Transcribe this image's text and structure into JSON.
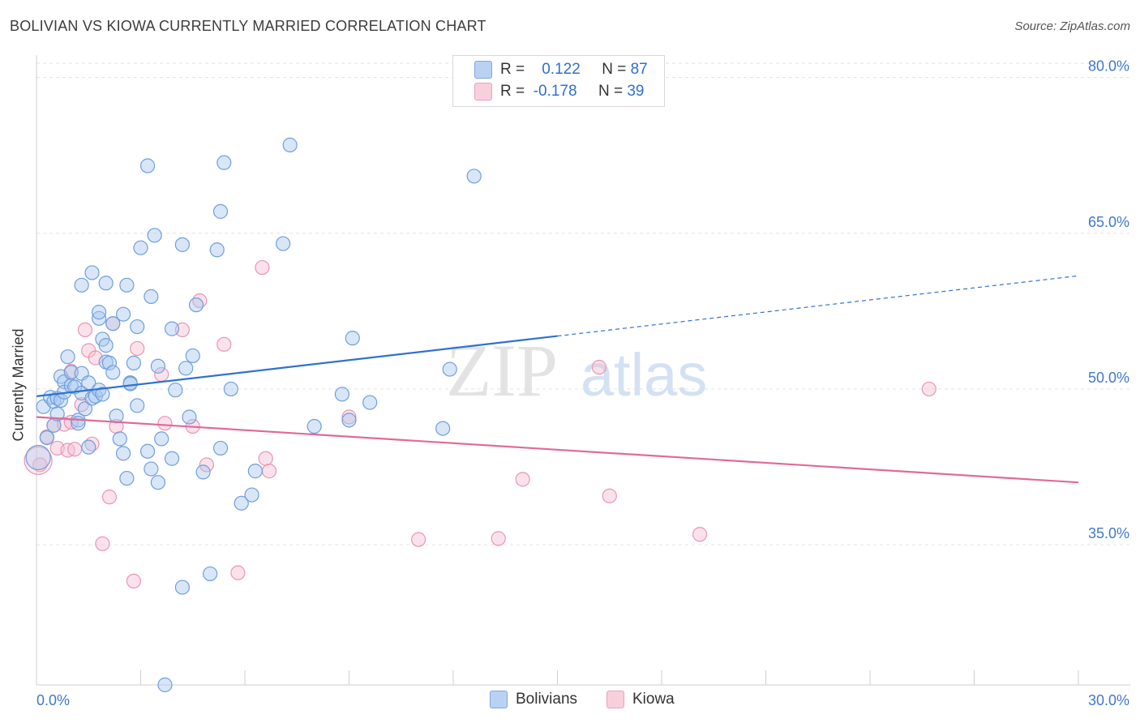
{
  "title": "BOLIVIAN VS KIOWA CURRENTLY MARRIED CORRELATION CHART",
  "source": "Source: ZipAtlas.com",
  "watermark": {
    "zip": "ZIP",
    "atlas": "atlas"
  },
  "colors": {
    "blue_fill": "#a9c8f0",
    "blue_stroke": "#6f9fdc",
    "blue_line": "#2f72d0",
    "pink_fill": "#f6bfd0",
    "pink_stroke": "#e996b2",
    "pink_line": "#e06b98",
    "axis_label": "#3f78cc",
    "grid": "#e2e2e2"
  },
  "legend": {
    "rows": [
      {
        "r_label": "R =",
        "r_value": "0.122",
        "n_label": "N =",
        "n_value": "87"
      },
      {
        "r_label": "R =",
        "r_value": "-0.178",
        "n_label": "N =",
        "n_value": "39"
      }
    ]
  },
  "bottom_legend": {
    "bolivians": "Bolivians",
    "kiowa": "Kiowa"
  },
  "chart_data": {
    "type": "scatter",
    "title": "BOLIVIAN VS KIOWA CURRENTLY MARRIED CORRELATION CHART",
    "xlabel": "",
    "ylabel": "Currently Married",
    "xlim": [
      0,
      30
    ],
    "ylim": [
      21.5,
      82
    ],
    "x_tick_labels": [
      "0.0%",
      "30.0%"
    ],
    "y_ticks": [
      35,
      50,
      65,
      80
    ],
    "y_tick_labels": [
      "35.0%",
      "50.0%",
      "65.0%",
      "80.0%"
    ],
    "grid": true,
    "legend_position": "top-center",
    "series": [
      {
        "name": "Bolivians",
        "r": 0.122,
        "n": 87,
        "trend": {
          "x0": 0,
          "y0": 49.3,
          "x1": 15,
          "y1": 55.1,
          "dashed_to_x": 30,
          "dashed_to_y": 60.9
        },
        "points": [
          [
            0.2,
            48.3
          ],
          [
            0.3,
            45.3
          ],
          [
            0.4,
            49.2
          ],
          [
            0.5,
            46.5
          ],
          [
            0.5,
            48.8
          ],
          [
            0.6,
            47.6
          ],
          [
            0.6,
            49.1
          ],
          [
            0.7,
            48.9
          ],
          [
            0.7,
            51.2
          ],
          [
            0.8,
            50.7
          ],
          [
            0.8,
            49.7
          ],
          [
            0.9,
            53.1
          ],
          [
            1.0,
            51.6
          ],
          [
            1.0,
            50.3
          ],
          [
            1.1,
            50.2
          ],
          [
            1.2,
            47.0
          ],
          [
            1.2,
            46.7
          ],
          [
            1.3,
            51.5
          ],
          [
            1.3,
            49.6
          ],
          [
            1.4,
            48.1
          ],
          [
            1.5,
            44.4
          ],
          [
            1.5,
            50.6
          ],
          [
            1.6,
            49.1
          ],
          [
            1.6,
            61.2
          ],
          [
            1.7,
            49.3
          ],
          [
            1.8,
            56.8
          ],
          [
            1.8,
            49.9
          ],
          [
            1.9,
            54.8
          ],
          [
            1.9,
            49.5
          ],
          [
            2.0,
            54.2
          ],
          [
            2.0,
            52.6
          ],
          [
            2.1,
            52.5
          ],
          [
            2.2,
            56.3
          ],
          [
            2.2,
            51.6
          ],
          [
            2.3,
            47.4
          ],
          [
            2.4,
            45.2
          ],
          [
            2.5,
            43.8
          ],
          [
            2.6,
            41.4
          ],
          [
            2.7,
            50.6
          ],
          [
            2.7,
            50.5
          ],
          [
            2.8,
            52.5
          ],
          [
            2.9,
            48.4
          ],
          [
            3.0,
            63.6
          ],
          [
            3.2,
            44.0
          ],
          [
            3.3,
            42.3
          ],
          [
            3.3,
            58.9
          ],
          [
            3.5,
            41.0
          ],
          [
            3.5,
            52.2
          ],
          [
            3.6,
            45.2
          ],
          [
            3.7,
            21.5
          ],
          [
            3.9,
            43.3
          ],
          [
            4.0,
            49.9
          ],
          [
            4.2,
            30.9
          ],
          [
            4.3,
            52.0
          ],
          [
            4.4,
            47.3
          ],
          [
            4.5,
            53.2
          ],
          [
            4.6,
            58.1
          ],
          [
            4.8,
            42.0
          ],
          [
            5.0,
            32.2
          ],
          [
            5.2,
            63.4
          ],
          [
            5.3,
            44.3
          ],
          [
            5.6,
            50.0
          ],
          [
            5.9,
            39.0
          ],
          [
            6.2,
            39.8
          ],
          [
            6.3,
            42.1
          ],
          [
            7.1,
            64.0
          ],
          [
            8.0,
            46.4
          ],
          [
            8.8,
            49.5
          ],
          [
            9.0,
            47.0
          ],
          [
            9.1,
            54.9
          ],
          [
            9.6,
            48.7
          ],
          [
            11.7,
            46.2
          ],
          [
            11.9,
            51.9
          ],
          [
            12.6,
            70.5
          ],
          [
            7.3,
            73.5
          ],
          [
            5.4,
            71.8
          ],
          [
            4.2,
            63.9
          ],
          [
            3.4,
            64.8
          ],
          [
            3.2,
            71.5
          ],
          [
            5.3,
            67.1
          ],
          [
            1.3,
            60.0
          ],
          [
            2.0,
            60.2
          ],
          [
            2.6,
            60.0
          ],
          [
            3.9,
            55.8
          ],
          [
            2.5,
            57.2
          ],
          [
            1.8,
            57.4
          ],
          [
            2.9,
            56.0
          ]
        ]
      },
      {
        "name": "Kiowa",
        "r": -0.178,
        "n": 39,
        "trend": {
          "x0": 0,
          "y0": 47.3,
          "x1": 30,
          "y1": 41.0
        },
        "points": [
          [
            0.1,
            42.7
          ],
          [
            0.3,
            45.4
          ],
          [
            0.5,
            46.5
          ],
          [
            0.6,
            44.3
          ],
          [
            0.8,
            46.6
          ],
          [
            0.9,
            44.1
          ],
          [
            1.0,
            51.7
          ],
          [
            1.1,
            44.2
          ],
          [
            1.3,
            48.5
          ],
          [
            1.4,
            55.7
          ],
          [
            1.5,
            53.7
          ],
          [
            1.6,
            44.7
          ],
          [
            1.7,
            53.0
          ],
          [
            1.9,
            35.1
          ],
          [
            2.1,
            39.6
          ],
          [
            2.2,
            56.3
          ],
          [
            2.3,
            46.4
          ],
          [
            2.8,
            31.5
          ],
          [
            2.9,
            53.9
          ],
          [
            3.6,
            51.4
          ],
          [
            3.7,
            46.7
          ],
          [
            4.2,
            55.7
          ],
          [
            4.5,
            46.4
          ],
          [
            4.7,
            58.5
          ],
          [
            4.9,
            42.7
          ],
          [
            5.4,
            54.3
          ],
          [
            5.8,
            32.3
          ],
          [
            6.6,
            43.3
          ],
          [
            6.7,
            42.1
          ],
          [
            6.5,
            61.7
          ],
          [
            9.0,
            47.3
          ],
          [
            11.0,
            35.5
          ],
          [
            13.3,
            35.6
          ],
          [
            14.0,
            41.3
          ],
          [
            16.2,
            52.1
          ],
          [
            16.5,
            39.7
          ],
          [
            19.1,
            36.0
          ],
          [
            25.7,
            50.0
          ],
          [
            1.0,
            46.8
          ]
        ]
      }
    ]
  }
}
